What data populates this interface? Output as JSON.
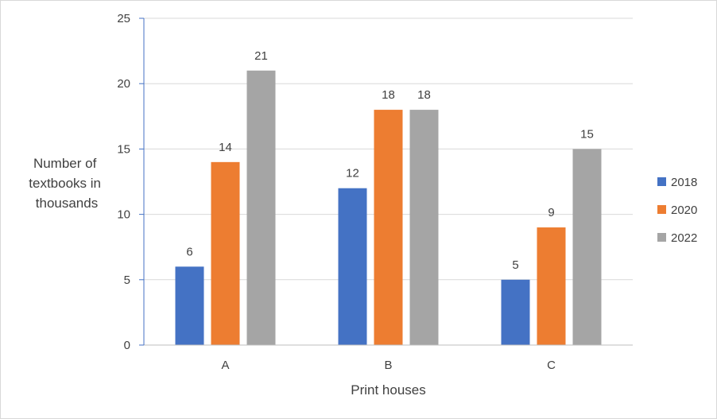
{
  "chart_data": {
    "type": "bar",
    "categories": [
      "A",
      "B",
      "C"
    ],
    "series": [
      {
        "name": "2018",
        "values": [
          6,
          12,
          5
        ],
        "color": "#4472c4"
      },
      {
        "name": "2020",
        "values": [
          14,
          18,
          9
        ],
        "color": "#ed7d31"
      },
      {
        "name": "2022",
        "values": [
          21,
          18,
          15
        ],
        "color": "#a5a5a5"
      }
    ],
    "xlabel": "Print houses",
    "ylabel_lines": [
      "Number of",
      "textbooks in",
      "thousands"
    ],
    "ylim": [
      0,
      25
    ],
    "yticks": [
      0,
      5,
      10,
      15,
      20,
      25
    ],
    "grid": true,
    "legend_position": "right",
    "data_labels": true
  }
}
